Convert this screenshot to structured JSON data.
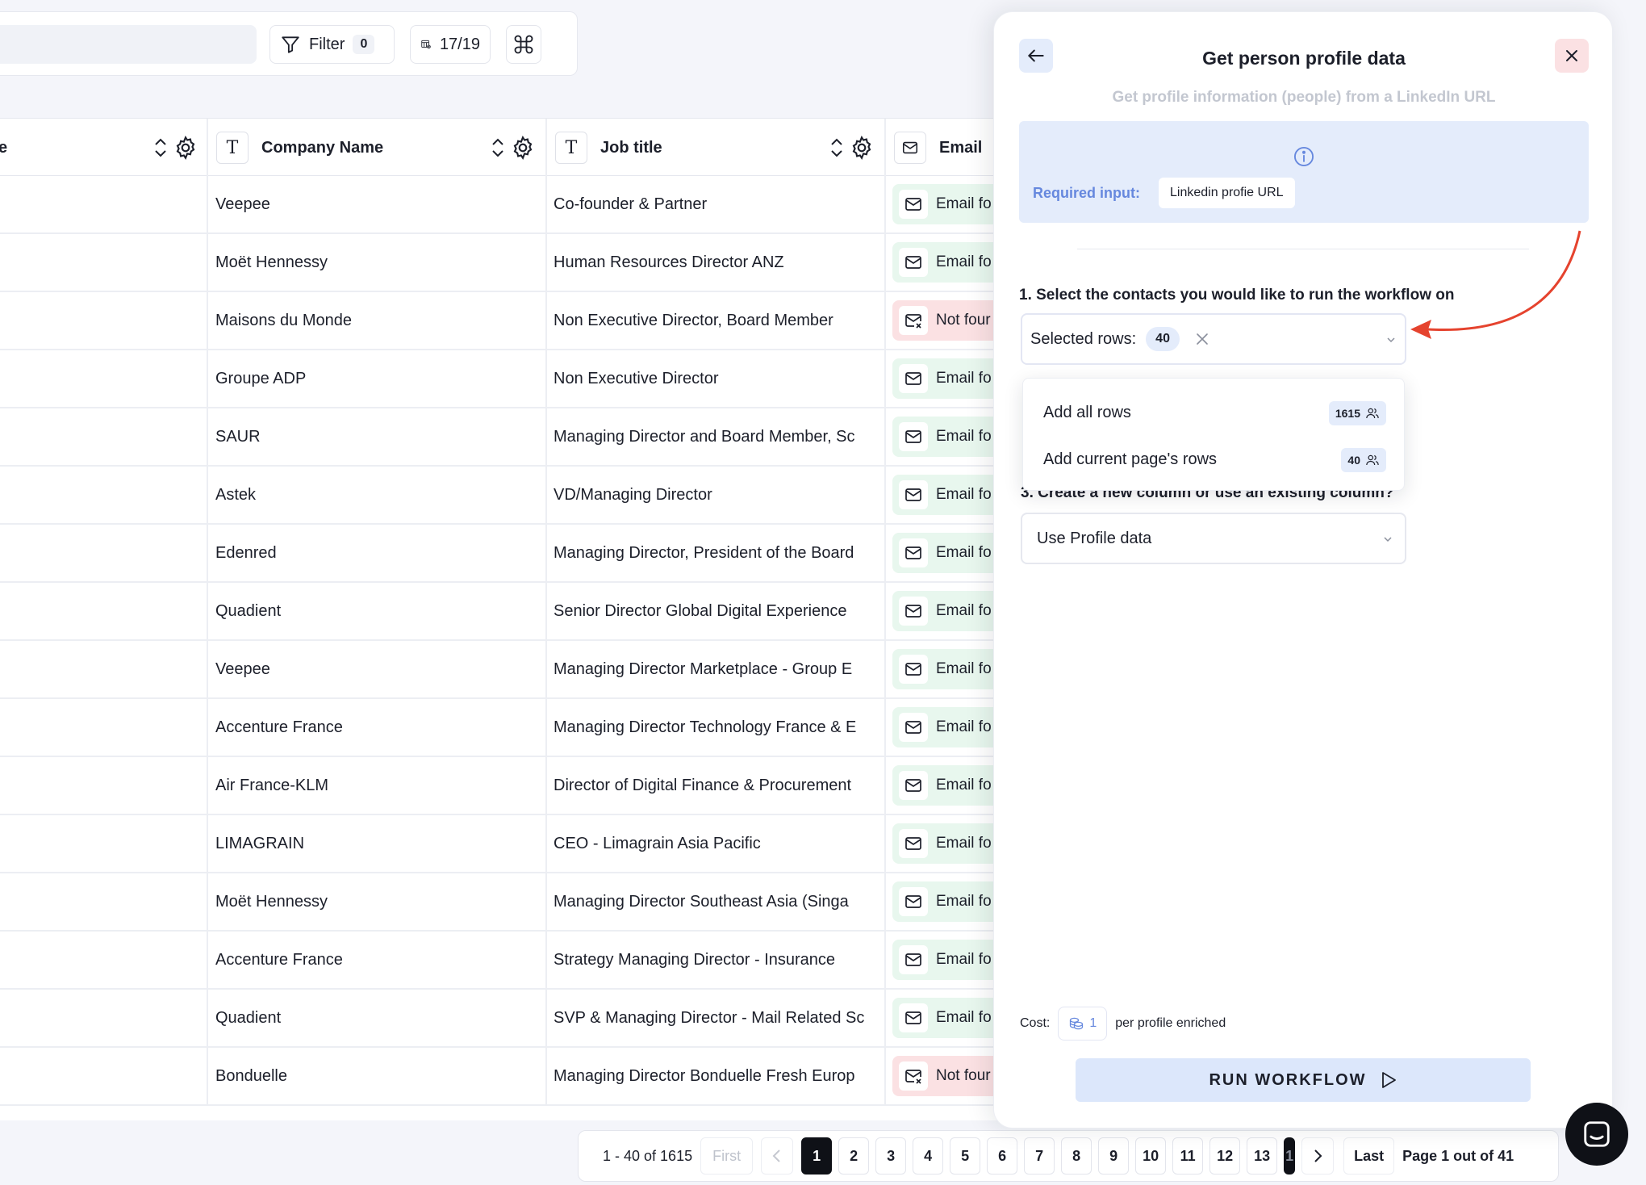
{
  "toolbar": {
    "filter_label": "Filter",
    "filter_count": "0",
    "columns_label": "17/19"
  },
  "table": {
    "columns": [
      {
        "label": "e"
      },
      {
        "label": "Company Name"
      },
      {
        "label": "Job title"
      },
      {
        "label": "Email"
      }
    ],
    "rows": [
      {
        "company": "Veepee",
        "job": "Co-founder & Partner",
        "email": "Email fo",
        "status": "found"
      },
      {
        "company": "Moët Hennessy",
        "job": "Human Resources Director ANZ",
        "email": "Email fo",
        "status": "found"
      },
      {
        "company": "Maisons du Monde",
        "job": "Non Executive Director, Board Member",
        "email": "Not four",
        "status": "notfound"
      },
      {
        "company": "Groupe ADP",
        "job": "Non Executive Director",
        "email": "Email fo",
        "status": "found"
      },
      {
        "company": "SAUR",
        "job": "Managing Director and Board Member, Sc",
        "email": "Email fo",
        "status": "found"
      },
      {
        "company": "Astek",
        "job": "VD/Managing Director",
        "email": "Email fo",
        "status": "found"
      },
      {
        "company": "Edenred",
        "job": "Managing Director, President of the Board",
        "email": "Email fo",
        "status": "found"
      },
      {
        "company": "Quadient",
        "job": "Senior Director Global Digital Experience",
        "email": "Email fo",
        "status": "found"
      },
      {
        "company": "Veepee",
        "job": "Managing Director Marketplace - Group E",
        "email": "Email fo",
        "status": "found"
      },
      {
        "company": "Accenture France",
        "job": "Managing Director Technology France & E",
        "email": "Email fo",
        "status": "found"
      },
      {
        "company": "Air France-KLM",
        "job": "Director of Digital Finance & Procurement",
        "email": "Email fo",
        "status": "found"
      },
      {
        "company": "LIMAGRAIN",
        "job": "CEO - Limagrain Asia Pacific",
        "email": "Email fo",
        "status": "found"
      },
      {
        "company": "Moët Hennessy",
        "job": "Managing Director Southeast Asia (Singa",
        "email": "Email fo",
        "status": "found"
      },
      {
        "company": "Accenture France",
        "job": "Strategy Managing Director - Insurance",
        "email": "Email fo",
        "status": "found"
      },
      {
        "company": "Quadient",
        "job": "SVP & Managing Director - Mail Related Sc",
        "email": "Email fo",
        "status": "found"
      },
      {
        "company": "Bonduelle",
        "job": "Managing Director Bonduelle Fresh Europ",
        "email": "Not four",
        "status": "notfound"
      }
    ]
  },
  "pagination": {
    "range": "1 - 40 of 1615",
    "first": "First",
    "pages": [
      "1",
      "2",
      "3",
      "4",
      "5",
      "6",
      "7",
      "8",
      "9",
      "10",
      "11",
      "12",
      "13",
      "1"
    ],
    "active_page": "1",
    "last": "Last",
    "info": "Page 1 out of 41"
  },
  "panel": {
    "title": "Get person profile data",
    "subtitle": "Get profile information (people) from a LinkedIn URL",
    "required_label": "Required input:",
    "required_chip": "Linkedin profie URL",
    "step1": "1. Select the contacts you would like to run the workflow on",
    "selected_rows_label": "Selected rows:",
    "selected_rows_count": "40",
    "dropdown": [
      {
        "label": "Add all rows",
        "count": "1615"
      },
      {
        "label": "Add current page's rows",
        "count": "40"
      }
    ],
    "step3": "3. Create a new column or use an existing column?",
    "column_choice": "Use Profile data",
    "cost_label": "Cost:",
    "cost_value": "1",
    "cost_suffix": "per profile enriched",
    "run_label": "RUN WORKFLOW"
  },
  "colors": {
    "accent_blue": "#6688de",
    "found_green": "#e8f7ee",
    "notfound_red": "#fbe1e3",
    "annotation_red": "#e5432e"
  }
}
